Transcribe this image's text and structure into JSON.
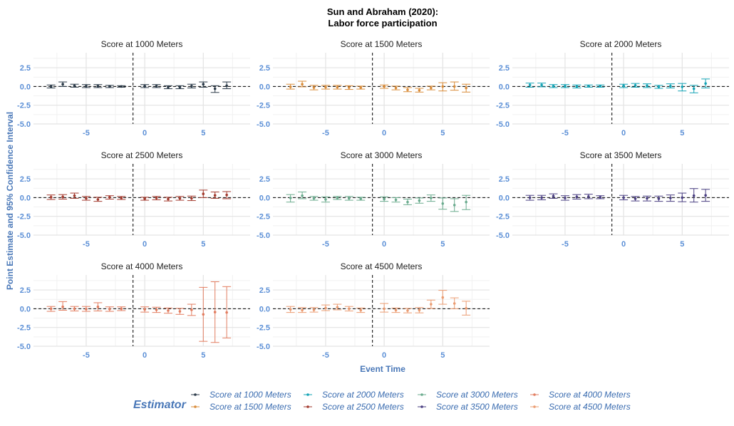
{
  "chart_data": {
    "type": "scatter",
    "title_line1": "Sun and Abraham (2020):",
    "title_line2": "Labor force participation",
    "xlabel": "Event Time",
    "ylabel": "Point Estimate and 95% Confidence Interval",
    "xlim": [
      -9.5,
      9
    ],
    "ylim": [
      -5,
      4.5
    ],
    "x_ticks": [
      -5,
      0,
      5
    ],
    "y_ticks": [
      2.5,
      0.0,
      -2.5,
      -5.0
    ],
    "y_tick_labels": [
      "2.5",
      "0.0",
      "-2.5",
      "-5.0"
    ],
    "x_tick_labels": [
      "-5",
      "0",
      "5"
    ],
    "reference_x": -1,
    "reference_y": 0,
    "grid": true,
    "legend_title": "Estimator",
    "legend_position": "bottom",
    "panels": [
      {
        "name": "Score at 1000 Meters",
        "color": "#2b3a48",
        "points": [
          {
            "x": -8,
            "y": 0.0,
            "lo": -0.2,
            "hi": 0.2
          },
          {
            "x": -7,
            "y": 0.3,
            "lo": 0.0,
            "hi": 0.6
          },
          {
            "x": -6,
            "y": 0.1,
            "lo": -0.1,
            "hi": 0.3
          },
          {
            "x": -5,
            "y": 0.05,
            "lo": -0.15,
            "hi": 0.25
          },
          {
            "x": -4,
            "y": 0.05,
            "lo": -0.15,
            "hi": 0.25
          },
          {
            "x": -3,
            "y": 0.0,
            "lo": -0.15,
            "hi": 0.15
          },
          {
            "x": -2,
            "y": 0.0,
            "lo": -0.1,
            "hi": 0.1
          },
          {
            "x": 0,
            "y": 0.05,
            "lo": -0.15,
            "hi": 0.25
          },
          {
            "x": 1,
            "y": 0.05,
            "lo": -0.15,
            "hi": 0.25
          },
          {
            "x": 2,
            "y": -0.1,
            "lo": -0.3,
            "hi": 0.1
          },
          {
            "x": 3,
            "y": -0.1,
            "lo": -0.3,
            "hi": 0.1
          },
          {
            "x": 4,
            "y": 0.05,
            "lo": -0.2,
            "hi": 0.3
          },
          {
            "x": 5,
            "y": 0.3,
            "lo": -0.1,
            "hi": 0.6
          },
          {
            "x": 6,
            "y": -0.3,
            "lo": -0.8,
            "hi": 0.1
          },
          {
            "x": 7,
            "y": 0.1,
            "lo": -0.3,
            "hi": 0.6
          }
        ]
      },
      {
        "name": "Score at 1500 Meters",
        "color": "#d98c3a",
        "points": [
          {
            "x": -8,
            "y": -0.05,
            "lo": -0.35,
            "hi": 0.3
          },
          {
            "x": -7,
            "y": 0.3,
            "lo": -0.05,
            "hi": 0.7
          },
          {
            "x": -6,
            "y": -0.15,
            "lo": -0.45,
            "hi": 0.15
          },
          {
            "x": -5,
            "y": -0.1,
            "lo": -0.35,
            "hi": 0.15
          },
          {
            "x": -4,
            "y": -0.1,
            "lo": -0.35,
            "hi": 0.15
          },
          {
            "x": -3,
            "y": -0.15,
            "lo": -0.4,
            "hi": 0.1
          },
          {
            "x": -2,
            "y": -0.15,
            "lo": -0.35,
            "hi": 0.05
          },
          {
            "x": 0,
            "y": 0.0,
            "lo": -0.25,
            "hi": 0.2
          },
          {
            "x": 1,
            "y": -0.2,
            "lo": -0.45,
            "hi": 0.05
          },
          {
            "x": 2,
            "y": -0.45,
            "lo": -0.7,
            "hi": -0.15
          },
          {
            "x": 3,
            "y": -0.5,
            "lo": -0.75,
            "hi": -0.25
          },
          {
            "x": 4,
            "y": -0.2,
            "lo": -0.45,
            "hi": 0.05
          },
          {
            "x": 5,
            "y": 0.0,
            "lo": -0.6,
            "hi": 0.5
          },
          {
            "x": 6,
            "y": 0.0,
            "lo": -0.5,
            "hi": 0.6
          },
          {
            "x": 7,
            "y": -0.2,
            "lo": -0.75,
            "hi": 0.3
          }
        ]
      },
      {
        "name": "Score at 2000 Meters",
        "color": "#13a3b5",
        "points": [
          {
            "x": -8,
            "y": 0.2,
            "lo": -0.1,
            "hi": 0.45
          },
          {
            "x": -7,
            "y": 0.2,
            "lo": -0.05,
            "hi": 0.45
          },
          {
            "x": -6,
            "y": 0.05,
            "lo": -0.15,
            "hi": 0.25
          },
          {
            "x": -5,
            "y": 0.05,
            "lo": -0.15,
            "hi": 0.25
          },
          {
            "x": -4,
            "y": 0.0,
            "lo": -0.2,
            "hi": 0.2
          },
          {
            "x": -3,
            "y": 0.05,
            "lo": -0.1,
            "hi": 0.2
          },
          {
            "x": -2,
            "y": 0.05,
            "lo": -0.1,
            "hi": 0.2
          },
          {
            "x": 0,
            "y": 0.1,
            "lo": -0.15,
            "hi": 0.3
          },
          {
            "x": 1,
            "y": 0.15,
            "lo": -0.1,
            "hi": 0.4
          },
          {
            "x": 2,
            "y": 0.1,
            "lo": -0.15,
            "hi": 0.35
          },
          {
            "x": 3,
            "y": -0.05,
            "lo": -0.25,
            "hi": 0.15
          },
          {
            "x": 4,
            "y": 0.05,
            "lo": -0.2,
            "hi": 0.35
          },
          {
            "x": 5,
            "y": -0.05,
            "lo": -0.6,
            "hi": 0.4
          },
          {
            "x": 6,
            "y": -0.3,
            "lo": -0.85,
            "hi": 0.15
          },
          {
            "x": 7,
            "y": 0.4,
            "lo": -0.2,
            "hi": 1.0
          }
        ]
      },
      {
        "name": "Score at 2500 Meters",
        "color": "#a33a2e",
        "points": [
          {
            "x": -8,
            "y": 0.05,
            "lo": -0.25,
            "hi": 0.35
          },
          {
            "x": -7,
            "y": 0.1,
            "lo": -0.2,
            "hi": 0.4
          },
          {
            "x": -6,
            "y": 0.25,
            "lo": -0.1,
            "hi": 0.6
          },
          {
            "x": -5,
            "y": -0.1,
            "lo": -0.35,
            "hi": 0.15
          },
          {
            "x": -4,
            "y": -0.25,
            "lo": -0.5,
            "hi": 0.05
          },
          {
            "x": -3,
            "y": 0.05,
            "lo": -0.2,
            "hi": 0.25
          },
          {
            "x": -2,
            "y": -0.05,
            "lo": -0.25,
            "hi": 0.15
          },
          {
            "x": 0,
            "y": -0.15,
            "lo": -0.35,
            "hi": 0.05
          },
          {
            "x": 1,
            "y": -0.05,
            "lo": -0.3,
            "hi": 0.15
          },
          {
            "x": 2,
            "y": -0.2,
            "lo": -0.45,
            "hi": 0.05
          },
          {
            "x": 3,
            "y": -0.1,
            "lo": -0.35,
            "hi": 0.15
          },
          {
            "x": 4,
            "y": -0.1,
            "lo": -0.4,
            "hi": 0.2
          },
          {
            "x": 5,
            "y": 0.5,
            "lo": 0.0,
            "hi": 1.0
          },
          {
            "x": 6,
            "y": 0.3,
            "lo": -0.1,
            "hi": 0.75
          },
          {
            "x": 7,
            "y": 0.35,
            "lo": -0.15,
            "hi": 0.8
          }
        ]
      },
      {
        "name": "Score at 3000 Meters",
        "color": "#6aab8e",
        "points": [
          {
            "x": -8,
            "y": -0.05,
            "lo": -0.6,
            "hi": 0.4
          },
          {
            "x": -7,
            "y": 0.25,
            "lo": -0.15,
            "hi": 0.75
          },
          {
            "x": -6,
            "y": -0.1,
            "lo": -0.35,
            "hi": 0.15
          },
          {
            "x": -5,
            "y": -0.25,
            "lo": -0.6,
            "hi": 0.1
          },
          {
            "x": -4,
            "y": -0.05,
            "lo": -0.25,
            "hi": 0.15
          },
          {
            "x": -3,
            "y": -0.1,
            "lo": -0.35,
            "hi": 0.15
          },
          {
            "x": -2,
            "y": -0.15,
            "lo": -0.35,
            "hi": 0.05
          },
          {
            "x": 0,
            "y": -0.2,
            "lo": -0.5,
            "hi": 0.1
          },
          {
            "x": 1,
            "y": -0.3,
            "lo": -0.6,
            "hi": 0.0
          },
          {
            "x": 2,
            "y": -0.6,
            "lo": -0.95,
            "hi": -0.2
          },
          {
            "x": 3,
            "y": -0.4,
            "lo": -0.75,
            "hi": -0.05
          },
          {
            "x": 4,
            "y": -0.05,
            "lo": -0.5,
            "hi": 0.35
          },
          {
            "x": 5,
            "y": -0.8,
            "lo": -1.55,
            "hi": -0.05
          },
          {
            "x": 6,
            "y": -1.0,
            "lo": -1.85,
            "hi": -0.15
          },
          {
            "x": 7,
            "y": -0.6,
            "lo": -1.6,
            "hi": 0.3
          }
        ]
      },
      {
        "name": "Score at 3500 Meters",
        "color": "#4a3f82",
        "points": [
          {
            "x": -8,
            "y": 0.0,
            "lo": -0.35,
            "hi": 0.3
          },
          {
            "x": -7,
            "y": 0.0,
            "lo": -0.3,
            "hi": 0.3
          },
          {
            "x": -6,
            "y": 0.2,
            "lo": -0.1,
            "hi": 0.5
          },
          {
            "x": -5,
            "y": -0.05,
            "lo": -0.35,
            "hi": 0.25
          },
          {
            "x": -4,
            "y": 0.1,
            "lo": -0.2,
            "hi": 0.4
          },
          {
            "x": -3,
            "y": 0.15,
            "lo": -0.15,
            "hi": 0.45
          },
          {
            "x": -2,
            "y": 0.05,
            "lo": -0.15,
            "hi": 0.25
          },
          {
            "x": 0,
            "y": 0.0,
            "lo": -0.3,
            "hi": 0.3
          },
          {
            "x": 1,
            "y": -0.15,
            "lo": -0.45,
            "hi": 0.15
          },
          {
            "x": 2,
            "y": -0.1,
            "lo": -0.45,
            "hi": 0.2
          },
          {
            "x": 3,
            "y": -0.15,
            "lo": -0.5,
            "hi": 0.2
          },
          {
            "x": 4,
            "y": -0.05,
            "lo": -0.5,
            "hi": 0.35
          },
          {
            "x": 5,
            "y": 0.0,
            "lo": -0.55,
            "hi": 0.6
          },
          {
            "x": 6,
            "y": 0.25,
            "lo": -0.6,
            "hi": 1.2
          },
          {
            "x": 7,
            "y": 0.3,
            "lo": -0.5,
            "hi": 1.1
          }
        ]
      },
      {
        "name": "Score at 4000 Meters",
        "color": "#e27d60",
        "points": [
          {
            "x": -8,
            "y": 0.0,
            "lo": -0.35,
            "hi": 0.3
          },
          {
            "x": -7,
            "y": 0.25,
            "lo": -0.2,
            "hi": 0.95
          },
          {
            "x": -6,
            "y": 0.0,
            "lo": -0.3,
            "hi": 0.3
          },
          {
            "x": -5,
            "y": -0.05,
            "lo": -0.35,
            "hi": 0.3
          },
          {
            "x": -4,
            "y": 0.25,
            "lo": -0.3,
            "hi": 0.8
          },
          {
            "x": -3,
            "y": -0.05,
            "lo": -0.35,
            "hi": 0.25
          },
          {
            "x": -2,
            "y": 0.0,
            "lo": -0.25,
            "hi": 0.25
          },
          {
            "x": 0,
            "y": -0.1,
            "lo": -0.45,
            "hi": 0.25
          },
          {
            "x": 1,
            "y": -0.15,
            "lo": -0.5,
            "hi": 0.2
          },
          {
            "x": 2,
            "y": -0.25,
            "lo": -0.6,
            "hi": 0.1
          },
          {
            "x": 3,
            "y": -0.35,
            "lo": -0.75,
            "hi": 0.05
          },
          {
            "x": 4,
            "y": -0.15,
            "lo": -0.9,
            "hi": 0.6
          },
          {
            "x": 5,
            "y": -0.75,
            "lo": -4.35,
            "hi": 2.85
          },
          {
            "x": 6,
            "y": -0.45,
            "lo": -4.5,
            "hi": 3.6
          },
          {
            "x": 7,
            "y": -0.5,
            "lo": -3.9,
            "hi": 2.95
          }
        ]
      },
      {
        "name": "Score at 4500 Meters",
        "color": "#eb9c72",
        "points": [
          {
            "x": -8,
            "y": -0.1,
            "lo": -0.5,
            "hi": 0.3
          },
          {
            "x": -7,
            "y": -0.2,
            "lo": -0.5,
            "hi": 0.15
          },
          {
            "x": -6,
            "y": -0.15,
            "lo": -0.45,
            "hi": 0.15
          },
          {
            "x": -5,
            "y": 0.1,
            "lo": -0.25,
            "hi": 0.5
          },
          {
            "x": -4,
            "y": 0.2,
            "lo": -0.15,
            "hi": 0.6
          },
          {
            "x": -3,
            "y": 0.0,
            "lo": -0.3,
            "hi": 0.3
          },
          {
            "x": -2,
            "y": -0.2,
            "lo": -0.5,
            "hi": 0.1
          },
          {
            "x": 0,
            "y": 0.0,
            "lo": -0.45,
            "hi": 0.7
          },
          {
            "x": 1,
            "y": -0.2,
            "lo": -0.5,
            "hi": 0.1
          },
          {
            "x": 2,
            "y": -0.25,
            "lo": -0.55,
            "hi": 0.05
          },
          {
            "x": 3,
            "y": -0.2,
            "lo": -0.55,
            "hi": 0.15
          },
          {
            "x": 4,
            "y": 0.6,
            "lo": 0.05,
            "hi": 1.15
          },
          {
            "x": 5,
            "y": 1.5,
            "lo": 0.6,
            "hi": 2.45
          },
          {
            "x": 6,
            "y": 0.7,
            "lo": 0.0,
            "hi": 1.45
          },
          {
            "x": 7,
            "y": 0.05,
            "lo": -0.85,
            "hi": 1.0
          }
        ]
      }
    ],
    "legend": [
      {
        "label": "Score at 1000 Meters",
        "color": "#2b3a48"
      },
      {
        "label": "Score at 1500 Meters",
        "color": "#d98c3a"
      },
      {
        "label": "Score at 2000 Meters",
        "color": "#13a3b5"
      },
      {
        "label": "Score at 2500 Meters",
        "color": "#a33a2e"
      },
      {
        "label": "Score at 3000 Meters",
        "color": "#6aab8e"
      },
      {
        "label": "Score at 3500 Meters",
        "color": "#4a3f82"
      },
      {
        "label": "Score at 4000 Meters",
        "color": "#e27d60"
      },
      {
        "label": "Score at 4500 Meters",
        "color": "#eb9c72"
      }
    ]
  }
}
